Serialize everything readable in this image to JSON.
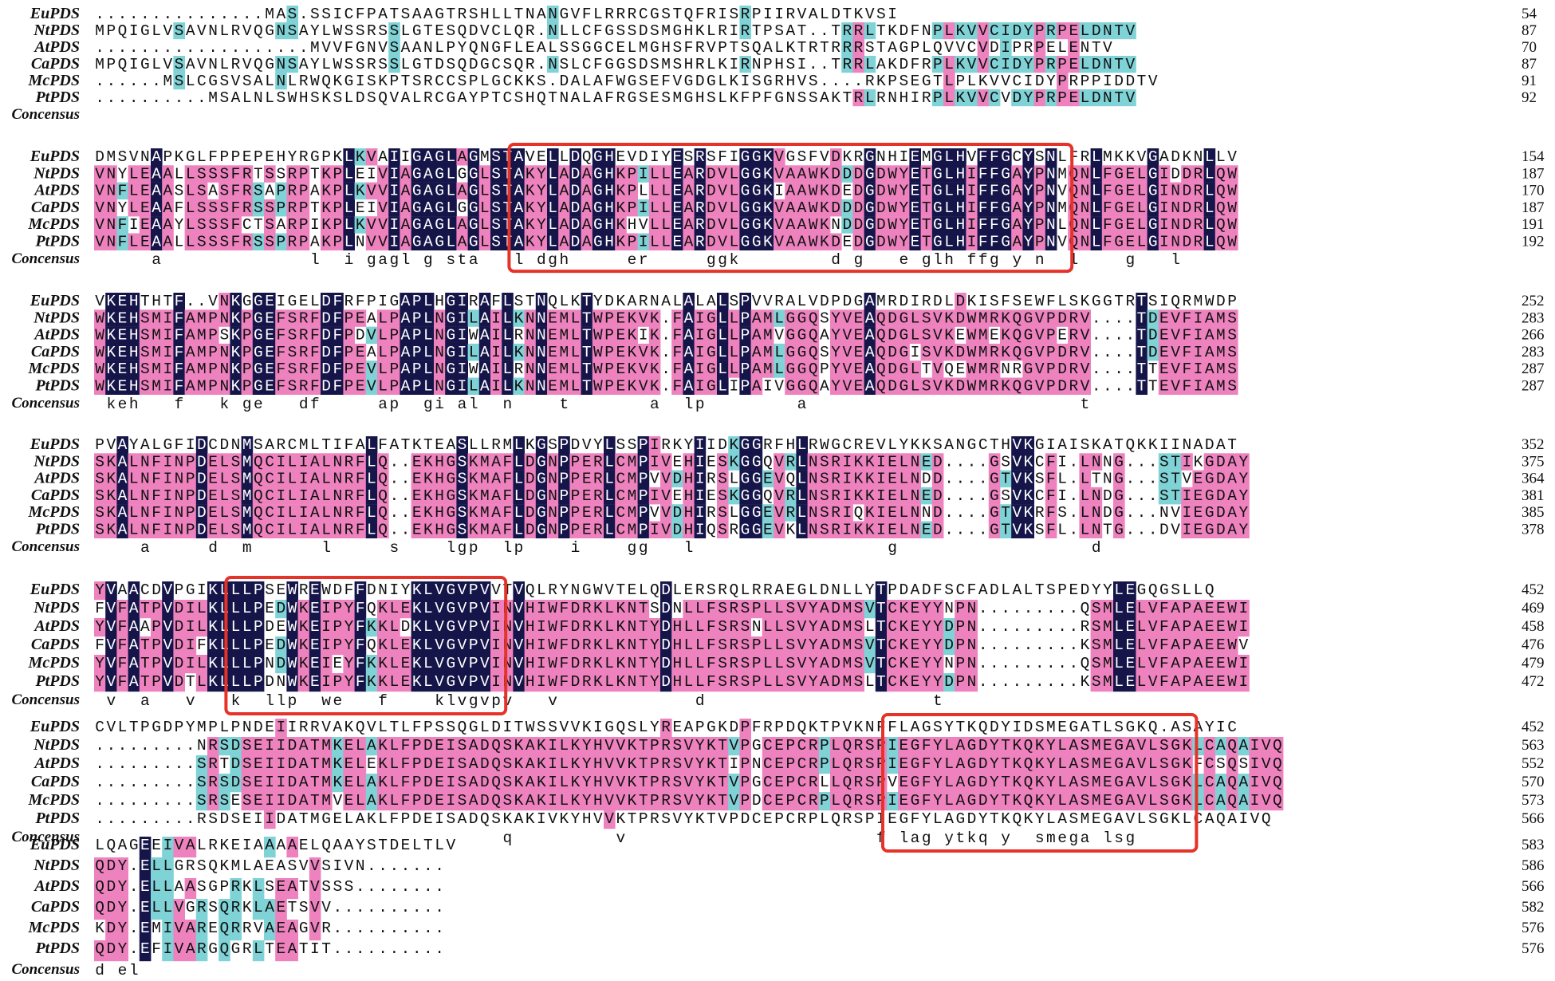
{
  "colors": {
    "identical_bg": "#15154a",
    "identical_fg": "#ffffff",
    "high_bg": "#ee82be",
    "low_bg": "#7fd3d6",
    "plain_fg": "#111111",
    "box": "#e5332a"
  },
  "consensus_label": "Concensus",
  "blocks": [
    {
      "names": [
        "EuPDS",
        "NtPDS",
        "AtPDS",
        "CaPDS",
        "McPDS",
        "PtPDS"
      ],
      "seqs": [
        "...............MAS.SSICFPATSAAGTRSHLLTNANGVFLRRRCGSTQFRISRPIIRVALDTKVSI",
        "MPQIGLVSAVNLRVQGNSAYLWSSRSSLGTESQDVCLQR.NLLCFGSSDSMGHKLRIRTPSAT..TRRLTKDFNPLKVVCIDYPRPELDNTV",
        "...................MVVFGNVSAANLPYQNGFLEALSSGGCELMGHSFRVPTSQALKTRTRRRSTAGPLQVVCVDIPRPELENTV",
        "MPQIGLVSAVNLRVQGNSAYLWSSRSSLGTDSQDGCSQR.NSLCFGGSDSMSHRLKIRNPHSI..TRRLAKDFRPLKVVCIDYPRPELDNTV",
        "......MSLCGSVSALNLRWQKGISKPTSRCCSPLGCKKS.DALAFWGSEFVGDGLKISGRHVS....RKPSEGTLPLKVVCIDYPRPPIDDTV",
        "..........MSALNLSWHSKSLDSQVALRCGAYPTCSHQTNALAFRGSESMGHSLKFPFGNSSAKTRLRNHIRPLKVVCVDYPRPELDNTV"
      ],
      "ends": [
        "54",
        "87",
        "70",
        "87",
        "91",
        "92"
      ],
      "consensus": "",
      "cons_end": ""
    },
    {
      "names": [
        "EuPDS",
        "NtPDS",
        "AtPDS",
        "CaPDS",
        "McPDS",
        "PtPDS"
      ],
      "seqs": [
        "DMSVNAPKGLFPPEPEHYRGPKLKVAIIGAGLAGMSTAVELLDQGHEVDIYESRSFIGGKVGSFVDKRGNHIEMGLHVFFGCYSNLFRLMKKVGADKNLLV",
        "VNYLEAALLSSSFRTSSRPTKPLEIVIAGAGLGGLSTAKYLADAGHKPILLEARDVLGGKVAAWKDDDGDWYETGLHIFFGAYPNMQNLFGELGIDDRLQW",
        "VNFLEAASLSASFRSAPRPAKPLKVVIAGAGLAGLSTAKYLADAGHKPLLLEARDVLGGKIAAWKDEDGDWYETGLHIFFGAYPNVQNLFGELGINDRLQW",
        "VNYLEAAFLSSSFRSSPRPTKPLEIVIAGAGLGGLSTAKYLADAGHKPILLEARDVLGGKVAAWKDDDGDWYETGLHIFFGAYPNMQNLFGELGINDRLQW",
        "VNFIEAAYLSSSFCTSARPIKPLKVVIAGAGLAGLSTAKYLADAGHKHVLLEARDVLGGKVAAWKNDDGDWYETGLHIFFGAYPNLQNLFGELGINDRLQW",
        "VNFLEAALLSSSFRSSPRPAKPLNVVIAGAGLAGLSTAKYLADAGHKPILLEARDVLGGKVAAWKDEDGDWYETGLHIFFGAYPNVQNLFGELGINDRLQW"
      ],
      "ends": [
        "154",
        "187",
        "170",
        "187",
        "191",
        "192"
      ],
      "consensus": "     a             l  i gagl g sta   l dgh     er     ggk        d g   e glh ffg y n  l    g   l   ",
      "cons_end": ""
    },
    {
      "names": [
        "EuPDS",
        "NtPDS",
        "AtPDS",
        "CaPDS",
        "McPDS",
        "PtPDS"
      ],
      "seqs": [
        "VKEHTHTF..VNKGGEIGELDFRFPIGAPLHGIRAFLSTNQLKTYDKARNALALALSPVVRALVDPDGAMRDIRDLDKISFSEWFLSKGGTRTSIQRMWDP",
        "WKEHSMIFAMPNKPGEFSRFDFPEALPAPLNGILAILKNNEMLTWPEKVK.FAIGLLPAMLGGQSYVEAQDGLSVKDWMRKQGVPDRV....TDEVFIAMS",
        "WKEHSMIFAMPSKPGEFSRFDFPDVLPAPLNGIWAILRNNEMLTWPEKIK.FAIGLLPAMVGGQAYVEAQDGLSVKEWMEKQGVPERV....TDEVFIAMS",
        "WKEHSMIFAMPNKPGEFSRFDFPEALPAPLNGILAILKNNEMLTWPEKVK.FAIGLLPAMLGGQSYVEAQDGISVKDWMRKQGVPDRV....TDEVFIAMS",
        "WKEHSMIFAMPNKPGEFSRFDFPEVLPAPLNGIWAILRNNEMLTWPEKVK.FAIGLLPAMLGGQPYVEAQDGLTVQEWMRNRGVPDRV....TTEVFIAMS",
        "WKEHSMIFAMPNKPGEFSRFDFPEVLPAPLNGILAILKNNEMLTWPEKVK.FAIGLIPAIVGGQAYVEAQDGLSVKDWMRKQGVPDRV....TTEVFIAMS"
      ],
      "ends": [
        "252",
        "283",
        "266",
        "283",
        "287",
        "287"
      ],
      "consensus": " keh   f   k ge   df     ap  gi al  n    t       a  lp        a                        t          ",
      "cons_end": ""
    },
    {
      "names": [
        "EuPDS",
        "NtPDS",
        "AtPDS",
        "CaPDS",
        "McPDS",
        "PtPDS"
      ],
      "seqs": [
        "PVAYALGFIDCDNMSARCMLTIFALFATKTEASLLRMLKGSPDVYLSSPIRKYIIDKGGRFHLRWGCREVLYKKSANGCTHVKGIAISKATQKKIINADAT",
        "SKALNFINPDELSMQCILIALNRFLQ..EKHGSKMAFLDGNPPERLCMPIVEHIESKGGQVRLNSRIKKIELNED....GSVKCFI.LNNG...STIKGDAY",
        "SKALNFINPDELSMQCILIALNRFLQ..EKHGSKMAFLDGNPPERLCMPVVDHIRSLGGEVQLNSRIKKIELNDD....GTVKSFL.LTNG...STVEGDAY",
        "SKALNFINPDELSMQCILIALNRFLQ..EKHGSKMAFLDGNPPERLCMPIVEHIESKGGQVRLNSRIKKIELNED....GSVKCFI.LNDG...STIEGDAY",
        "SKALNFINPDELSMQCILIALNRFLQ..EKHGSKMAFLDGNPPERLCMPVVDHIRSLGGEVRLNSRIQKIELNND....GTVKRFS.LNDG...NVIEGDAY",
        "SKALNFINPDELSMQCILIALNRFLQ..EKHGSKMAFLDGNPPERLCMPIVDHIQSRGGEVKLNSRIKKIELNED....GTVKSFL.LNTG...DVIEGDAY"
      ],
      "ends": [
        "352",
        "375",
        "364",
        "381",
        "385",
        "378"
      ],
      "consensus": "    a     d  m      l     s    lgp  lp    i    gg   l                 g                 d    ",
      "cons_end": ""
    },
    {
      "names": [
        "EuPDS",
        "NtPDS",
        "AtPDS",
        "CaPDS",
        "McPDS",
        "PtPDS"
      ],
      "seqs": [
        "YVAACDVPGIKLLLPSEWREWDFFDNIYKLVGVPVVTVQLRYNGWVTELQDLERSRQLRRAEGLDNLLYTPDADFSCFADLALTSPEDYYLEGQGSLLQ",
        "FVFATPVDILKLLLPEDWKEIPYFQKLEKLVGVPVINVHIWFDRKLKNTSDNLLFSRSPLLSVYADMSVTCKEYYNPN.........QSMLELVFAPAEEWI",
        "YVFAAPVDILKLLLPDEWKEIPYFKKLDKLVGVPVINVHIWFDRKLKNTYDHLLFSRSNLLSVYADMSLTCKEYYDPN.........RSMLELVFAPAEEWI",
        "FVFATPVDIFKLLLPEDWKEIPYFQKLEKLVGVPVINVHIWFDRKLKNTYDHLLFSRSPLLSVYADMSVTCKEYYDPN.........KSMLELVFAPAEEWV",
        "YVFATPVDILKLLLPNDWKEIEYFKKLEKLVGVPVINVHIWFDRKLKNTYDHLLFSRSPLLSVYADMSVTCKEYYNPN.........QSMLELVFAPAEEWI",
        "YVFATPVDTLKLLLPDNWKEIPYFKKLEKLVGVPVINVHIWFDRKLKNTYDHLLFSRSPLLSVYADMSLTCKEYYDPN.........KSMLELVFAPAEEWI"
      ],
      "ends": [
        "452",
        "469",
        "458",
        "476",
        "479",
        "472"
      ],
      "consensus": " v  a   v   k  llp  we   f    klvgvpv   v            d                    t                    ",
      "cons_end": ""
    },
    {
      "names": [
        "EuPDS",
        "NtPDS",
        "AtPDS",
        "CaPDS",
        "McPDS",
        "PtPDS"
      ],
      "seqs": [
        "CVLTPGDPYMPLPNDEIIRRVAKQVLTLFPSSQGLDITWSSVVKIGQSLYREAPGKDPFRPDQKTPVKNFFLAGSYTKQDYIDSMEGATLSGKQ.ASAYIC",
        ".........NRSDSEIIDATMKELAKLFPDEISADQSKAKILKYHVVKTPRSVYKTVPGCEPCRPLQRSPIEGFYLAGDYTKQKYLASMEGAVLSGKLCAQAIVQ",
        ".........SRTDSEIIDATMKELEKLFPDEISADQSKAKILKYHVVKTPRSVYKTIPNCEPCRPLQRSPIEGFYLAGDYTKQKYLASMEGAVLSGKFCSQSIVQ",
        ".........SRSDSEIIDATMKELAKLFPDEISADQSKAKILKYHVVKTPRSVYKTVPGCEPCRLLQRSPVEGFYLAGDYTKQKYLASMEGAVLSGKLCAQAIVQ",
        ".........SRSESEIIDATMVELAKLFPDEISADQSKAKILKYHVVKTPRSVYKTVPDCEPCRPLQRSPIEGFYLAGDYTKQKYLASMEGAVLSGKLCAQAIVQ",
        ".........RSDSEIIDATMGELAKLFPDEISADQSKAKIVKYHVVKTPRSVYKTVPDCEPCRPLQRSPIEGFYLAGDYTKQKYLASMEGAVLSGKLCAQAIVQ"
      ],
      "ends": [
        "452",
        "563",
        "552",
        "570",
        "573",
        "566"
      ],
      "consensus": "                                    q         v                      f lag ytkq y  smega lsg     ",
      "cons_end": ""
    },
    {
      "names": [
        "EuPDS",
        "NtPDS",
        "AtPDS",
        "CaPDS",
        "McPDS",
        "PtPDS"
      ],
      "seqs": [
        "LQAGEEIVALRKEIAAAAELQAAYSTDELTLV",
        "QDY.ELLGRSQKMLAEASVVSIVN.......",
        "QDY.ELLAASGPRKLSEATVSSS........",
        "QDY.ELLVGRSQRKLAETSVV..........",
        "KDY.EMIVAREQRRVAEAGVR..........",
        "QDY.EFIVARGQGRLTEATIT.........."
      ],
      "ends": [
        "583",
        "586",
        "566",
        "582",
        "576",
        "576"
      ],
      "consensus": "d el",
      "cons_end": ""
    }
  ],
  "highlight_boxes": [
    {
      "block": 1,
      "start": 37,
      "end": 85,
      "consensus": true
    },
    {
      "block": 4,
      "start": 12,
      "end": 35,
      "consensus": true
    },
    {
      "block": 5,
      "start": 70,
      "end": 96,
      "consensus": true
    }
  ]
}
